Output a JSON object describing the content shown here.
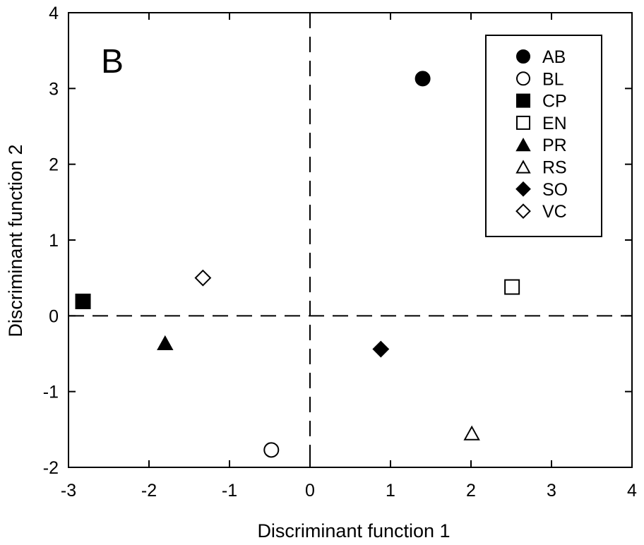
{
  "chart_data": {
    "type": "scatter",
    "panel_label": "B",
    "xlabel": "Discriminant function 1",
    "ylabel": "Discriminant function 2",
    "xlim": [
      -3,
      4
    ],
    "ylim": [
      -2,
      4
    ],
    "xticks": [
      "-3",
      "-2",
      "-1",
      "0",
      "1",
      "2",
      "3",
      "4"
    ],
    "yticks": [
      "-2",
      "-1",
      "0",
      "1",
      "2",
      "3",
      "4"
    ],
    "reference_lines": {
      "x": 0,
      "y": 0,
      "style": "dashed"
    },
    "legend_position": "top-right",
    "points": [
      {
        "label": "AB",
        "marker": "filled-circle",
        "x": 1.4,
        "y": 3.13
      },
      {
        "label": "BL",
        "marker": "open-circle",
        "x": -0.48,
        "y": -1.77
      },
      {
        "label": "CP",
        "marker": "filled-square",
        "x": -2.82,
        "y": 0.19
      },
      {
        "label": "EN",
        "marker": "open-square",
        "x": 2.51,
        "y": 0.38
      },
      {
        "label": "PR",
        "marker": "filled-triangle",
        "x": -1.8,
        "y": -0.36
      },
      {
        "label": "RS",
        "marker": "open-triangle",
        "x": 2.01,
        "y": -1.55
      },
      {
        "label": "SO",
        "marker": "filled-diamond",
        "x": 0.88,
        "y": -0.44
      },
      {
        "label": "VC",
        "marker": "open-diamond",
        "x": -1.33,
        "y": 0.5
      }
    ]
  }
}
